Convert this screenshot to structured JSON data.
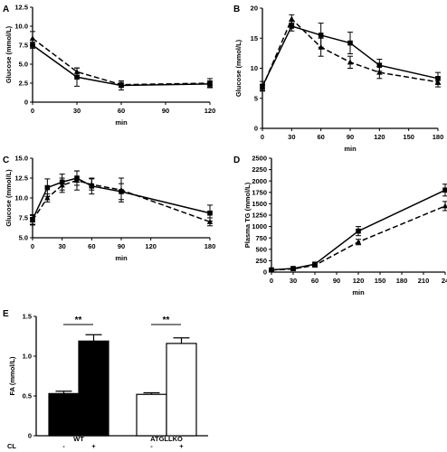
{
  "chart_data": [
    {
      "id": "A",
      "type": "line",
      "panel_label": "A",
      "xlabel": "min",
      "ylabel": "Glucose (mmol/L)",
      "xlim": [
        0,
        120
      ],
      "ylim": [
        0,
        12.5
      ],
      "xticks": [
        "0",
        "30",
        "60",
        "90",
        "120"
      ],
      "yticks": [
        "0",
        "2.5",
        "5.0",
        "7.5",
        "10.0",
        "12.5"
      ],
      "series": [
        {
          "style": "solid",
          "marker": "square",
          "x": [
            0,
            30,
            60,
            120
          ],
          "y": [
            7.5,
            3.3,
            2.2,
            2.4
          ],
          "err": [
            0.4,
            1.2,
            0.6,
            0.4
          ]
        },
        {
          "style": "dashed",
          "marker": "triangle",
          "x": [
            0,
            30,
            60,
            120
          ],
          "y": [
            8.4,
            4.0,
            2.3,
            2.5
          ],
          "err": [
            0.9,
            0.5,
            0.3,
            0.6
          ]
        }
      ]
    },
    {
      "id": "B",
      "type": "line",
      "panel_label": "B",
      "xlabel": "min",
      "ylabel": "Glucose (mmol/L)",
      "xlim": [
        0,
        180
      ],
      "ylim": [
        0,
        20
      ],
      "xticks": [
        "0",
        "30",
        "60",
        "90",
        "120",
        "150",
        "180"
      ],
      "yticks": [
        "0",
        "5",
        "10",
        "15",
        "20"
      ],
      "series": [
        {
          "style": "solid",
          "marker": "square",
          "x": [
            0,
            30,
            60,
            90,
            120,
            180
          ],
          "y": [
            7.0,
            17.0,
            15.5,
            14.2,
            10.5,
            8.3
          ],
          "err": [
            0.8,
            0.8,
            2.0,
            1.8,
            1.0,
            1.0
          ]
        },
        {
          "style": "dashed",
          "marker": "triangle",
          "x": [
            0,
            30,
            60,
            90,
            120,
            180
          ],
          "y": [
            6.8,
            18.2,
            13.5,
            11.0,
            9.3,
            7.7
          ],
          "err": [
            0.5,
            0.7,
            1.5,
            1.0,
            1.0,
            0.8
          ]
        }
      ]
    },
    {
      "id": "C",
      "type": "line",
      "panel_label": "C",
      "xlabel": "min",
      "ylabel": "Glucose (mmol/L)",
      "xlim": [
        0,
        180
      ],
      "ylim": [
        5,
        15
      ],
      "xticks": [
        "0",
        "30",
        "60",
        "90",
        "120",
        "180"
      ],
      "xtick_values": [
        0,
        30,
        60,
        90,
        120,
        180
      ],
      "yticks": [
        "5.0",
        "7.5",
        "10.0",
        "12.5",
        "15.0"
      ],
      "series": [
        {
          "style": "solid",
          "marker": "square",
          "x": [
            0,
            15,
            30,
            45,
            60,
            90,
            180
          ],
          "y": [
            7.3,
            11.3,
            12.0,
            12.5,
            11.5,
            10.8,
            8.1
          ],
          "err": [
            0.6,
            1.1,
            1.0,
            0.9,
            1.0,
            1.0,
            1.0
          ]
        },
        {
          "style": "dashed",
          "marker": "triangle",
          "x": [
            0,
            15,
            30,
            45,
            60,
            90,
            180
          ],
          "y": [
            7.2,
            10.0,
            11.6,
            12.2,
            11.7,
            11.0,
            7.0
          ],
          "err": [
            0.6,
            0.5,
            0.9,
            1.2,
            0.7,
            1.5,
            0.5
          ]
        }
      ]
    },
    {
      "id": "D",
      "type": "line",
      "panel_label": "D",
      "xlabel": "min",
      "ylabel": "Plasma TG (mmol/L)",
      "xlim": [
        0,
        240
      ],
      "ylim": [
        0,
        2500
      ],
      "xticks": [
        "0",
        "30",
        "60",
        "90",
        "120",
        "150",
        "180",
        "210",
        "24"
      ],
      "yticks": [
        "0",
        "250",
        "500",
        "750",
        "1000",
        "1250",
        "1500",
        "1750",
        "2000",
        "2250",
        "2500"
      ],
      "series": [
        {
          "style": "solid",
          "marker": "square",
          "x": [
            0,
            30,
            60,
            120,
            240
          ],
          "y": [
            50,
            80,
            175,
            900,
            1800
          ],
          "err": [
            20,
            15,
            30,
            100,
            130
          ]
        },
        {
          "style": "dashed",
          "marker": "triangle",
          "x": [
            0,
            30,
            60,
            120,
            240
          ],
          "y": [
            45,
            70,
            150,
            660,
            1450
          ],
          "err": [
            15,
            15,
            30,
            60,
            100
          ]
        }
      ]
    },
    {
      "id": "E",
      "type": "bar",
      "panel_label": "E",
      "ylabel": "FA (mmol/L)",
      "ylim": [
        0,
        1.5
      ],
      "yticks": [
        "0",
        "0.5",
        "1.0",
        "1.5"
      ],
      "groups": [
        "WT",
        "ATGLLKO"
      ],
      "cl_label": "CL",
      "cl_values": [
        "-",
        "+",
        "-",
        "+"
      ],
      "values": [
        0.53,
        1.19,
        0.52,
        1.16
      ],
      "err": [
        0.03,
        0.08,
        0.02,
        0.07
      ],
      "fills": [
        "#000000",
        "#000000",
        "#ffffff",
        "#ffffff"
      ],
      "significance": [
        "**",
        "**"
      ]
    }
  ]
}
